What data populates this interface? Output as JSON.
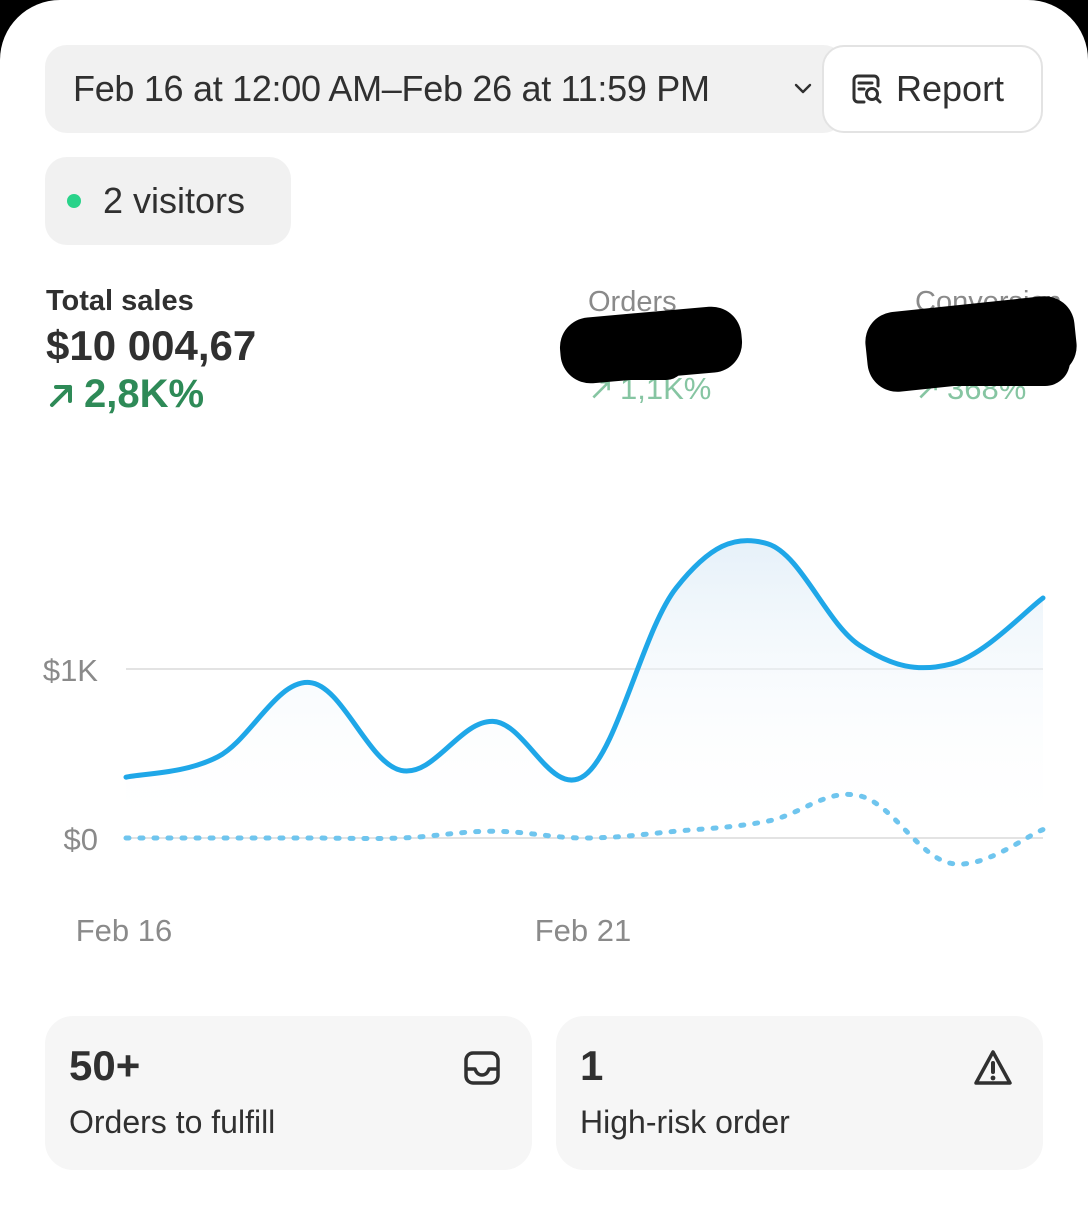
{
  "date_range": {
    "label": "Feb 16 at 12:00 AM–Feb 26 at 11:59 PM",
    "icon": "chevron-down-icon"
  },
  "report_button": {
    "label": "Report",
    "icon": "report-search-icon"
  },
  "live_visitors": {
    "label": "2 visitors",
    "status_color": "#29d38a"
  },
  "metrics": {
    "total_sales": {
      "title": "Total sales",
      "value": "$10 004,67",
      "change": "2,8K%",
      "change_icon": "arrow-up-right-icon"
    },
    "orders": {
      "title": "Orders",
      "change": "1,1K%"
    },
    "conversion": {
      "title": "Conversion",
      "change": "368%"
    }
  },
  "chart_data": {
    "type": "line",
    "x": [
      "Feb 16",
      "Feb 17",
      "Feb 18",
      "Feb 19",
      "Feb 20",
      "Feb 21",
      "Feb 22",
      "Feb 23",
      "Feb 24",
      "Feb 25",
      "Feb 26"
    ],
    "x_tick_labels": [
      "Feb 16",
      "Feb 21"
    ],
    "y_tick_labels": [
      "$1K",
      "$0"
    ],
    "ylim": [
      -200,
      1800
    ],
    "grid": true,
    "series": [
      {
        "style": "solid",
        "color": "#1fa7e8",
        "values": [
          360,
          480,
          920,
          400,
          690,
          370,
          1480,
          1740,
          1140,
          1030,
          1420
        ]
      },
      {
        "style": "dotted",
        "color": "#6fc5ee",
        "values": [
          0,
          0,
          0,
          0,
          40,
          0,
          40,
          100,
          250,
          -150,
          50
        ]
      }
    ]
  },
  "tiles": [
    {
      "value": "50+",
      "label": "Orders to fulfill",
      "icon": "inbox-icon"
    },
    {
      "value": "1",
      "label": "High-risk order",
      "icon": "alert-triangle-icon"
    }
  ]
}
